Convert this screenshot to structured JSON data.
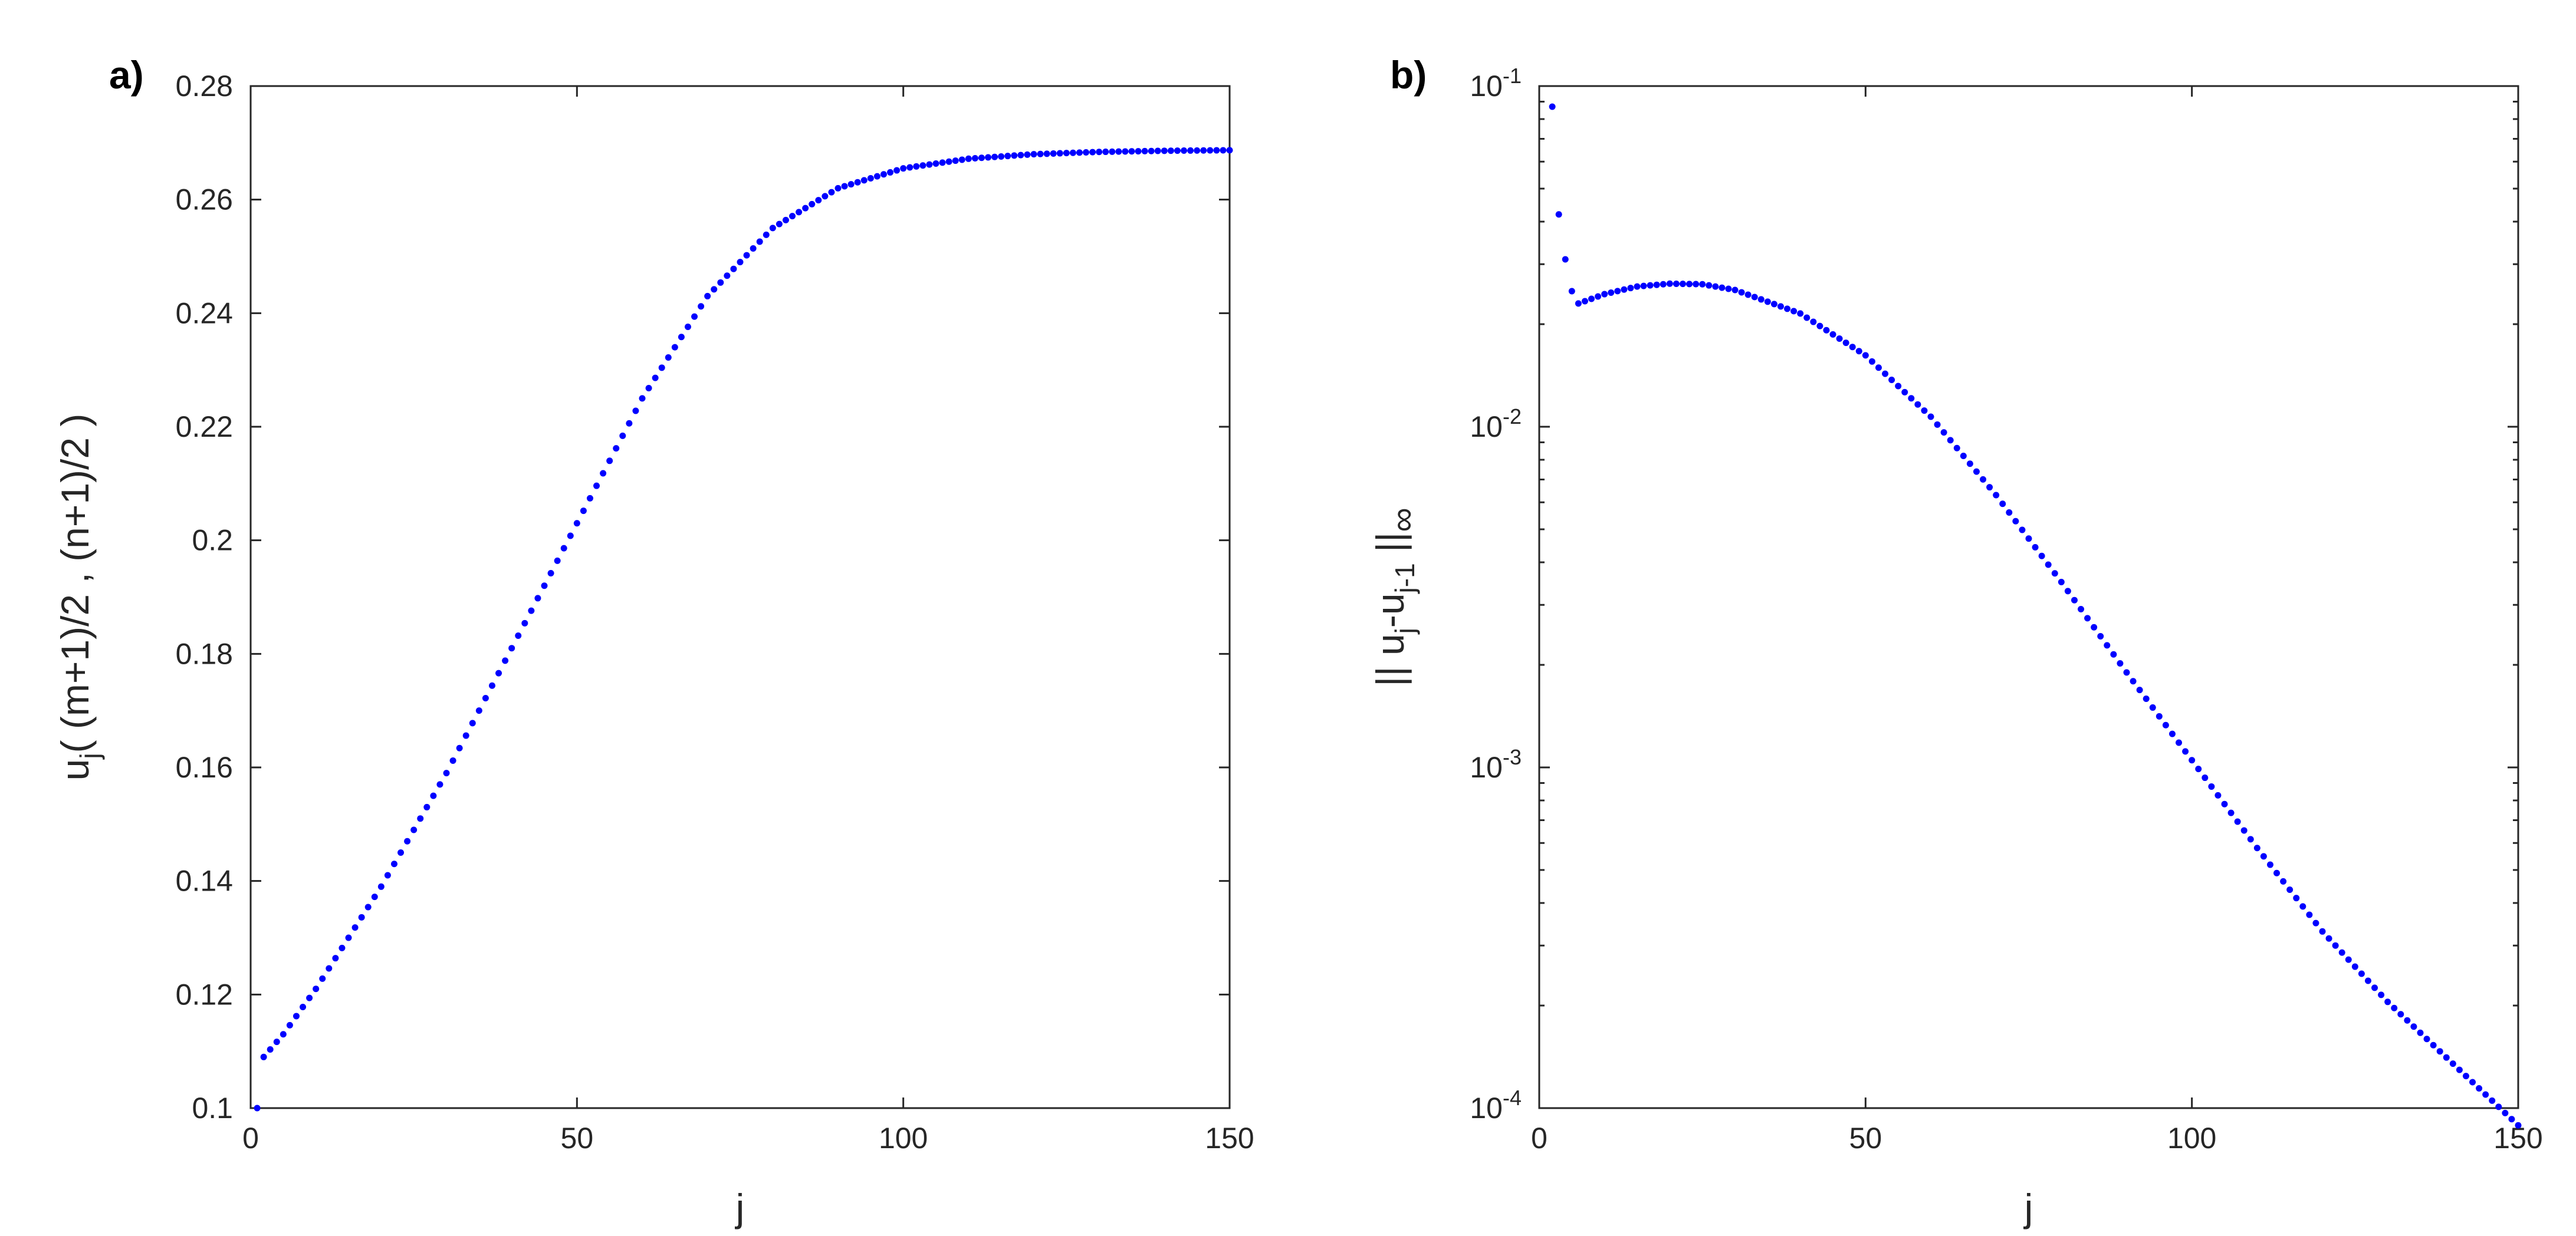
{
  "chart_data": [
    {
      "type": "scatter",
      "panel_label": "a)",
      "title": "",
      "xlabel": "j",
      "ylabel": {
        "base": "u",
        "sub": "j",
        "rest": "( (m+1)/2 , (n+1)/2 )"
      },
      "xlim": [
        0,
        150
      ],
      "ylim": [
        0.1,
        0.28
      ],
      "xscale": "linear",
      "yscale": "linear",
      "grid": false,
      "legend": "none",
      "marker_color": "#0000ff",
      "xticks": [
        0,
        50,
        100,
        150
      ],
      "xtick_labels": [
        "0",
        "50",
        "100",
        "150"
      ],
      "yticks": [
        0.1,
        0.12,
        0.14,
        0.16,
        0.18,
        0.2,
        0.22,
        0.24,
        0.26,
        0.28
      ],
      "ytick_labels": [
        "0.1",
        "0.12",
        "0.14",
        "0.16",
        "0.18",
        "0.2",
        "0.22",
        "0.24",
        "0.26",
        "0.28"
      ],
      "series": [
        {
          "x_start": 1,
          "x_end": 150,
          "description_points": [
            [
              1,
              0.1
            ],
            [
              2,
              0.109
            ],
            [
              5,
              0.113
            ],
            [
              10,
              0.121
            ],
            [
              20,
              0.139
            ],
            [
              30,
              0.159
            ],
            [
              40,
              0.181
            ],
            [
              50,
              0.203
            ],
            [
              60,
              0.225
            ],
            [
              70,
              0.243
            ],
            [
              80,
              0.255
            ],
            [
              90,
              0.262
            ],
            [
              100,
              0.2655
            ],
            [
              110,
              0.2672
            ],
            [
              120,
              0.268
            ],
            [
              130,
              0.2684
            ],
            [
              140,
              0.2686
            ],
            [
              150,
              0.2687
            ]
          ]
        }
      ]
    },
    {
      "type": "scatter",
      "panel_label": "b)",
      "title": "",
      "xlabel": "j",
      "ylabel": {
        "prefix": "|| u",
        "sub1": "j",
        "mid": "-u",
        "sub2": "j-1",
        "suffix": " ||",
        "sub3": "∞"
      },
      "xlim": [
        0,
        150
      ],
      "ylim": [
        0.0001,
        0.1
      ],
      "xscale": "linear",
      "yscale": "log",
      "grid": false,
      "legend": "none",
      "marker_color": "#0000ff",
      "xticks": [
        0,
        50,
        100,
        150
      ],
      "xtick_labels": [
        "0",
        "50",
        "100",
        "150"
      ],
      "yticks": [
        0.0001,
        0.001,
        0.01,
        0.1
      ],
      "ytick_labels": [
        {
          "base": "10",
          "exp": "-4"
        },
        {
          "base": "10",
          "exp": "-3"
        },
        {
          "base": "10",
          "exp": "-2"
        },
        {
          "base": "10",
          "exp": "-1"
        }
      ],
      "series": [
        {
          "x_start": 2,
          "x_end": 150,
          "description_points": [
            [
              2,
              0.087
            ],
            [
              3,
              0.042
            ],
            [
              4,
              0.031
            ],
            [
              5,
              0.025
            ],
            [
              6,
              0.023
            ],
            [
              10,
              0.0245
            ],
            [
              15,
              0.0258
            ],
            [
              20,
              0.0263
            ],
            [
              25,
              0.0262
            ],
            [
              30,
              0.0252
            ],
            [
              40,
              0.0215
            ],
            [
              50,
              0.0162
            ],
            [
              60,
              0.0107
            ],
            [
              70,
              0.0063
            ],
            [
              80,
              0.0035
            ],
            [
              90,
              0.0019
            ],
            [
              100,
              0.00105
            ],
            [
              110,
              0.00058
            ],
            [
              120,
              0.00033
            ],
            [
              130,
              0.000205
            ],
            [
              140,
              0.000135
            ],
            [
              150,
              8.9e-05
            ]
          ]
        }
      ]
    }
  ]
}
